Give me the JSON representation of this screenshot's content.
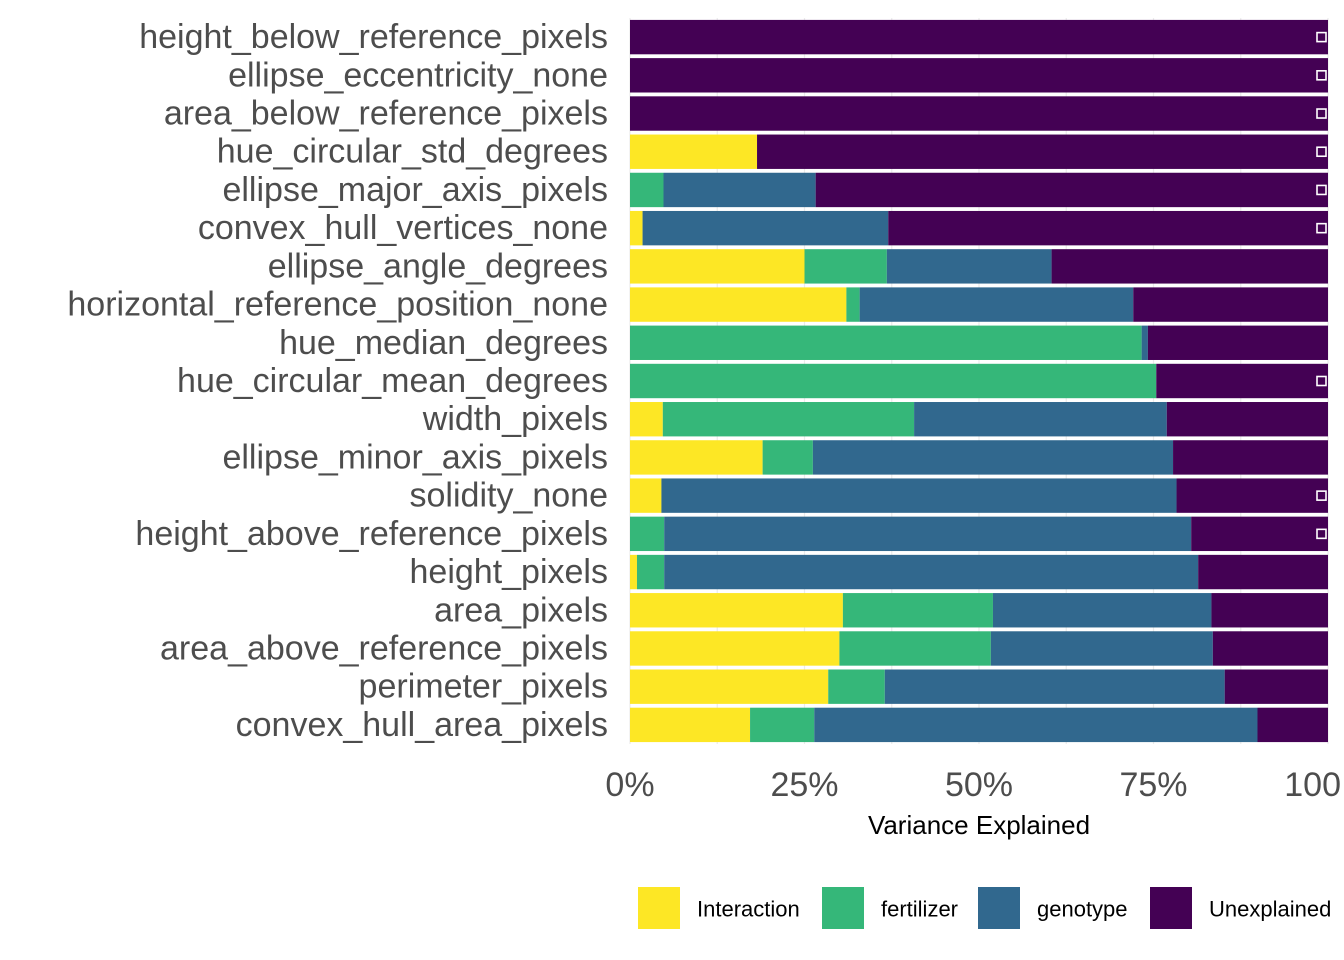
{
  "chart_data": {
    "type": "bar",
    "orientation": "horizontal",
    "stacked": true,
    "xlabel": "Variance Explained",
    "ylabel": "",
    "xlim": [
      0,
      100
    ],
    "x_ticks": [
      0,
      25,
      50,
      75,
      100
    ],
    "x_tick_labels": [
      "0%",
      "25%",
      "50%",
      "75%",
      "100"
    ],
    "grid": true,
    "legend_position": "bottom",
    "categories": [
      "height_below_reference_pixels",
      "ellipse_eccentricity_none",
      "area_below_reference_pixels",
      "hue_circular_std_degrees",
      "ellipse_major_axis_pixels",
      "convex_hull_vertices_none",
      "ellipse_angle_degrees",
      "horizontal_reference_position_none",
      "hue_median_degrees",
      "hue_circular_mean_degrees",
      "width_pixels",
      "ellipse_minor_axis_pixels",
      "solidity_none",
      "height_above_reference_pixels",
      "height_pixels",
      "area_pixels",
      "area_above_reference_pixels",
      "perimeter_pixels",
      "convex_hull_area_pixels"
    ],
    "series": [
      {
        "name": "Interaction",
        "color": "#FDE725",
        "values": [
          0,
          0,
          0,
          18.2,
          0,
          1.8,
          25,
          31,
          0,
          0,
          4.7,
          19,
          4.5,
          0,
          1,
          30.5,
          30,
          28.4,
          17.2
        ]
      },
      {
        "name": "fertilizer",
        "color": "#35B779",
        "values": [
          0,
          0,
          0,
          0,
          4.8,
          0,
          11.8,
          1.9,
          73.3,
          75.4,
          36,
          7.2,
          0,
          4.9,
          3.9,
          21.5,
          21.7,
          8.1,
          9.2
        ]
      },
      {
        "name": "genotype",
        "color": "#31688E",
        "values": [
          0,
          0,
          0,
          0,
          21.8,
          35.2,
          23.6,
          39.2,
          0.9,
          0,
          36.2,
          51.6,
          73.8,
          75.5,
          76.5,
          31.3,
          31.8,
          48.7,
          63.5
        ]
      },
      {
        "name": "Unexplained",
        "color": "#440154",
        "values": [
          100,
          100,
          100,
          81.8,
          73.4,
          63,
          39.6,
          27.9,
          25.8,
          24.6,
          23.1,
          22.2,
          21.7,
          19.6,
          18.6,
          16.7,
          16.5,
          14.8,
          10.1
        ]
      }
    ],
    "markers": [
      true,
      true,
      true,
      true,
      true,
      true,
      false,
      false,
      false,
      true,
      false,
      false,
      true,
      true,
      false,
      false,
      false,
      false,
      false
    ]
  }
}
